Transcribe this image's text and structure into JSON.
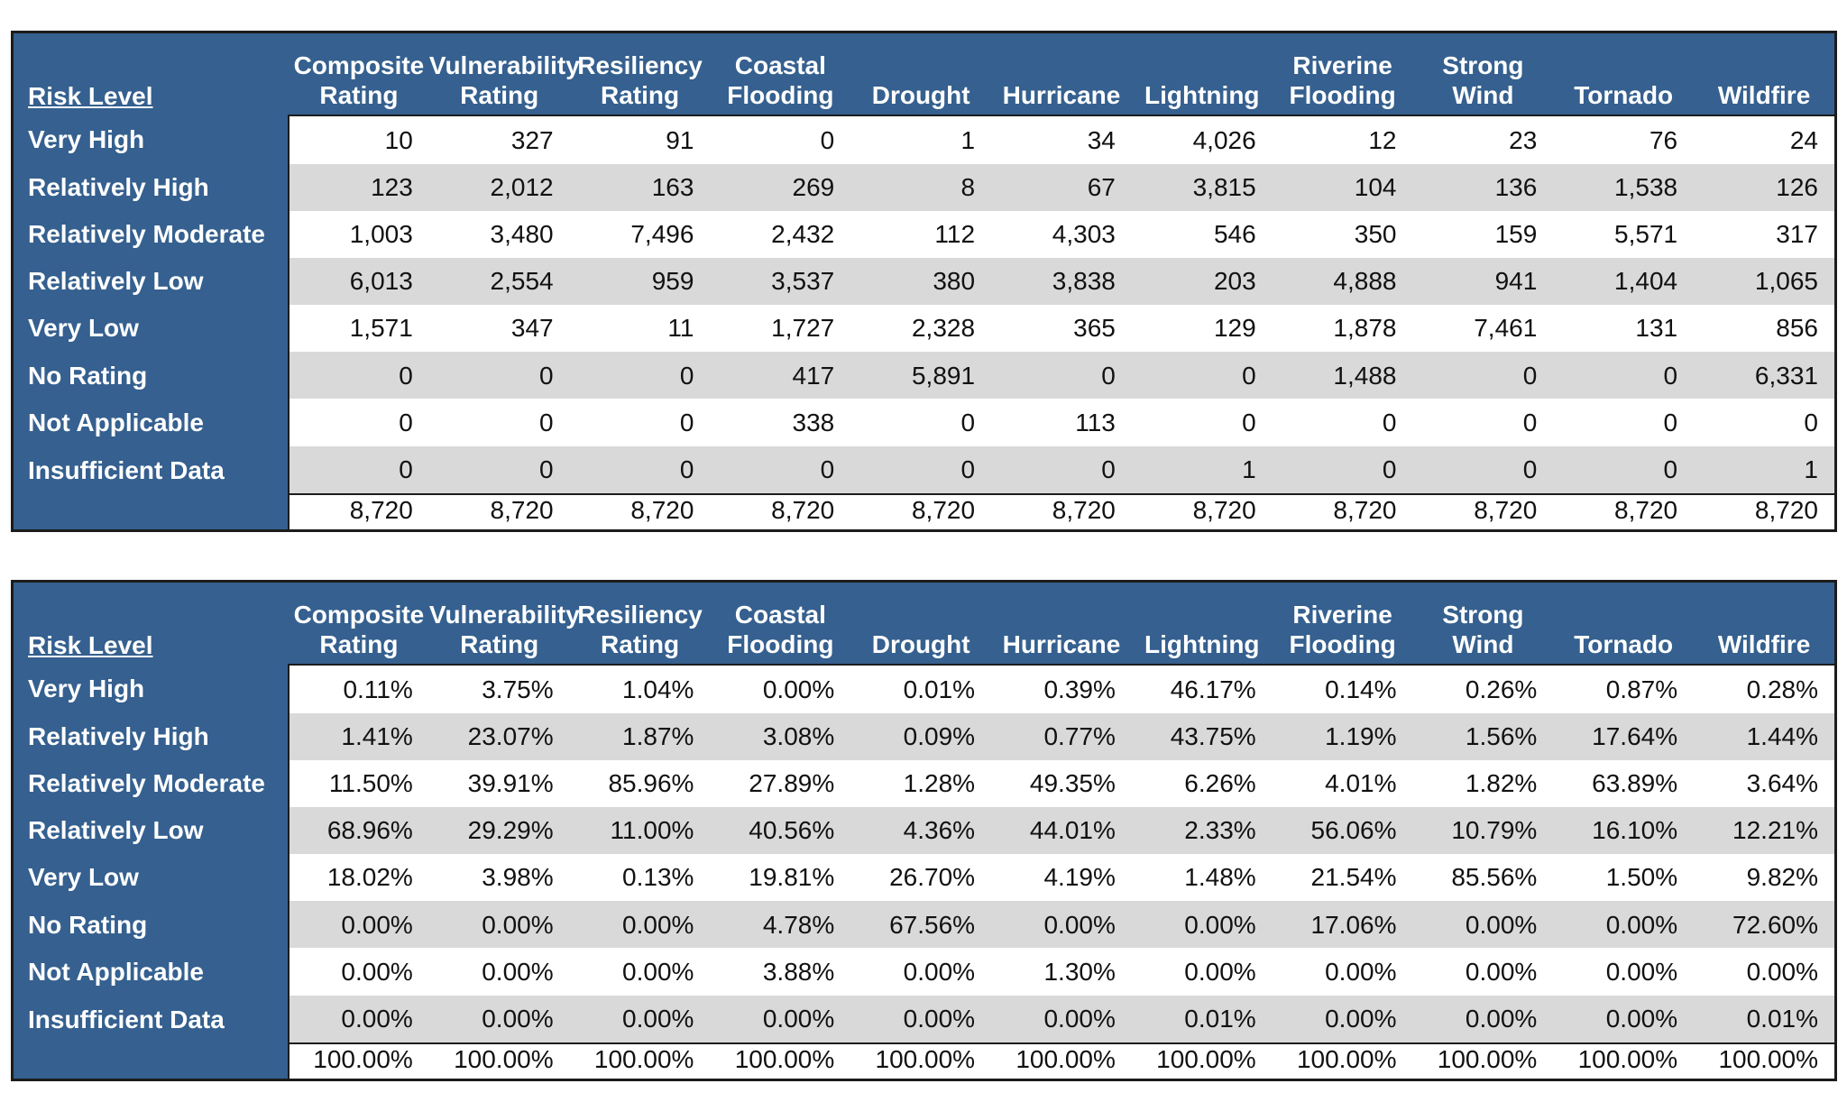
{
  "columns": [
    "Composite Rating",
    "Vulnerability Rating",
    "Resiliency Rating",
    "Coastal Flooding",
    "Drought",
    "Hurricane",
    "Lightning",
    "Riverine Flooding",
    "Strong Wind",
    "Tornado",
    "Wildfire"
  ],
  "counts_table": {
    "label_header": "Risk Level",
    "rows": [
      {
        "label": "Very High",
        "values": [
          "10",
          "327",
          "91",
          "0",
          "1",
          "34",
          "4,026",
          "12",
          "23",
          "76",
          "24"
        ]
      },
      {
        "label": "Relatively High",
        "values": [
          "123",
          "2,012",
          "163",
          "269",
          "8",
          "67",
          "3,815",
          "104",
          "136",
          "1,538",
          "126"
        ]
      },
      {
        "label": "Relatively Moderate",
        "values": [
          "1,003",
          "3,480",
          "7,496",
          "2,432",
          "112",
          "4,303",
          "546",
          "350",
          "159",
          "5,571",
          "317"
        ]
      },
      {
        "label": "Relatively Low",
        "values": [
          "6,013",
          "2,554",
          "959",
          "3,537",
          "380",
          "3,838",
          "203",
          "4,888",
          "941",
          "1,404",
          "1,065"
        ]
      },
      {
        "label": "Very Low",
        "values": [
          "1,571",
          "347",
          "11",
          "1,727",
          "2,328",
          "365",
          "129",
          "1,878",
          "7,461",
          "131",
          "856"
        ]
      },
      {
        "label": "No Rating",
        "values": [
          "0",
          "0",
          "0",
          "417",
          "5,891",
          "0",
          "0",
          "1,488",
          "0",
          "0",
          "6,331"
        ]
      },
      {
        "label": "Not Applicable",
        "values": [
          "0",
          "0",
          "0",
          "338",
          "0",
          "113",
          "0",
          "0",
          "0",
          "0",
          "0"
        ]
      },
      {
        "label": "Insufficient Data",
        "values": [
          "0",
          "0",
          "0",
          "0",
          "0",
          "0",
          "1",
          "0",
          "0",
          "0",
          "1"
        ]
      }
    ],
    "totals": [
      "8,720",
      "8,720",
      "8,720",
      "8,720",
      "8,720",
      "8,720",
      "8,720",
      "8,720",
      "8,720",
      "8,720",
      "8,720"
    ]
  },
  "percent_table": {
    "label_header": "Risk Level",
    "rows": [
      {
        "label": "Very High",
        "values": [
          "0.11%",
          "3.75%",
          "1.04%",
          "0.00%",
          "0.01%",
          "0.39%",
          "46.17%",
          "0.14%",
          "0.26%",
          "0.87%",
          "0.28%"
        ]
      },
      {
        "label": "Relatively High",
        "values": [
          "1.41%",
          "23.07%",
          "1.87%",
          "3.08%",
          "0.09%",
          "0.77%",
          "43.75%",
          "1.19%",
          "1.56%",
          "17.64%",
          "1.44%"
        ]
      },
      {
        "label": "Relatively Moderate",
        "values": [
          "11.50%",
          "39.91%",
          "85.96%",
          "27.89%",
          "1.28%",
          "49.35%",
          "6.26%",
          "4.01%",
          "1.82%",
          "63.89%",
          "3.64%"
        ]
      },
      {
        "label": "Relatively Low",
        "values": [
          "68.96%",
          "29.29%",
          "11.00%",
          "40.56%",
          "4.36%",
          "44.01%",
          "2.33%",
          "56.06%",
          "10.79%",
          "16.10%",
          "12.21%"
        ]
      },
      {
        "label": "Very Low",
        "values": [
          "18.02%",
          "3.98%",
          "0.13%",
          "19.81%",
          "26.70%",
          "4.19%",
          "1.48%",
          "21.54%",
          "85.56%",
          "1.50%",
          "9.82%"
        ]
      },
      {
        "label": "No Rating",
        "values": [
          "0.00%",
          "0.00%",
          "0.00%",
          "4.78%",
          "67.56%",
          "0.00%",
          "0.00%",
          "17.06%",
          "0.00%",
          "0.00%",
          "72.60%"
        ]
      },
      {
        "label": "Not Applicable",
        "values": [
          "0.00%",
          "0.00%",
          "0.00%",
          "3.88%",
          "0.00%",
          "1.30%",
          "0.00%",
          "0.00%",
          "0.00%",
          "0.00%",
          "0.00%"
        ]
      },
      {
        "label": "Insufficient Data",
        "values": [
          "0.00%",
          "0.00%",
          "0.00%",
          "0.00%",
          "0.00%",
          "0.00%",
          "0.01%",
          "0.00%",
          "0.00%",
          "0.00%",
          "0.01%"
        ]
      }
    ],
    "totals": [
      "100.00%",
      "100.00%",
      "100.00%",
      "100.00%",
      "100.00%",
      "100.00%",
      "100.00%",
      "100.00%",
      "100.00%",
      "100.00%",
      "100.00%"
    ]
  },
  "colors": {
    "header_blue": "#35608f",
    "row_stripe": "#d9d9d9",
    "border": "#1c1c1c"
  }
}
